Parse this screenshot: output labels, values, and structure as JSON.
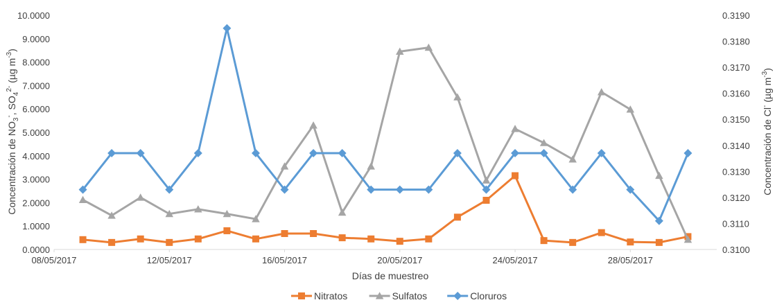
{
  "chart_data": {
    "type": "line",
    "xlabel": "Días de muestreo",
    "ylabel_left": "Concentración de NO3-, SO42- (µg m-3)",
    "ylabel_left_parts": [
      "Concentración de NO",
      "3",
      "-",
      ", SO",
      "4",
      "2-",
      " (µg m",
      "-3",
      ")"
    ],
    "ylabel_right": "Concentración de Cl- (µg m-3)",
    "ylabel_right_parts": [
      "Concentración de Cl",
      "-",
      " (µg m",
      "-3",
      ")"
    ],
    "x_ticks": [
      "08/05/2017",
      "12/05/2017",
      "16/05/2017",
      "20/05/2017",
      "24/05/2017",
      "28/05/2017"
    ],
    "x_range": [
      "08/05/2017",
      "31/05/2017"
    ],
    "x": [
      "09/05/2017",
      "10/05/2017",
      "11/05/2017",
      "12/05/2017",
      "13/05/2017",
      "14/05/2017",
      "15/05/2017",
      "16/05/2017",
      "17/05/2017",
      "18/05/2017",
      "19/05/2017",
      "20/05/2017",
      "21/05/2017",
      "22/05/2017",
      "23/05/2017",
      "24/05/2017",
      "25/05/2017",
      "26/05/2017",
      "27/05/2017",
      "28/05/2017",
      "29/05/2017",
      "30/05/2017"
    ],
    "ylim_left": [
      0,
      10
    ],
    "ylim_right": [
      0.31,
      0.319
    ],
    "y_ticks_left": [
      "0.0000",
      "1.0000",
      "2.0000",
      "3.0000",
      "4.0000",
      "5.0000",
      "6.0000",
      "7.0000",
      "8.0000",
      "9.0000",
      "10.0000"
    ],
    "y_ticks_right": [
      "0.3100",
      "0.3110",
      "0.3120",
      "0.3130",
      "0.3140",
      "0.3150",
      "0.3160",
      "0.3170",
      "0.3180",
      "0.3190"
    ],
    "grid": false,
    "legend_position": "bottom",
    "series": [
      {
        "name": "Nitratos",
        "axis": "left",
        "color": "#ED7D31",
        "marker": "square",
        "values": [
          0.42,
          0.3,
          0.45,
          0.3,
          0.45,
          0.8,
          0.45,
          0.68,
          0.68,
          0.5,
          0.45,
          0.35,
          0.45,
          1.38,
          2.1,
          3.15,
          0.38,
          0.3,
          0.72,
          0.32,
          0.3,
          0.55
        ]
      },
      {
        "name": "Sulfatos",
        "axis": "left",
        "color": "#A5A5A5",
        "marker": "triangle",
        "values": [
          2.12,
          1.45,
          2.22,
          1.52,
          1.72,
          1.52,
          1.3,
          3.55,
          5.3,
          1.58,
          3.55,
          8.45,
          8.62,
          6.5,
          2.95,
          5.15,
          4.55,
          3.85,
          6.72,
          5.98,
          3.15,
          0.42
        ]
      },
      {
        "name": "Cloruros",
        "axis": "right",
        "color": "#5B9BD5",
        "marker": "diamond",
        "values": [
          0.3123,
          0.3137,
          0.3137,
          0.3123,
          0.3137,
          0.3185,
          0.3137,
          0.3123,
          0.3137,
          0.3137,
          0.3123,
          0.3123,
          0.3123,
          0.3137,
          0.3123,
          0.3137,
          0.3137,
          0.3123,
          0.3137,
          0.3123,
          0.3111,
          0.3137
        ]
      }
    ]
  }
}
